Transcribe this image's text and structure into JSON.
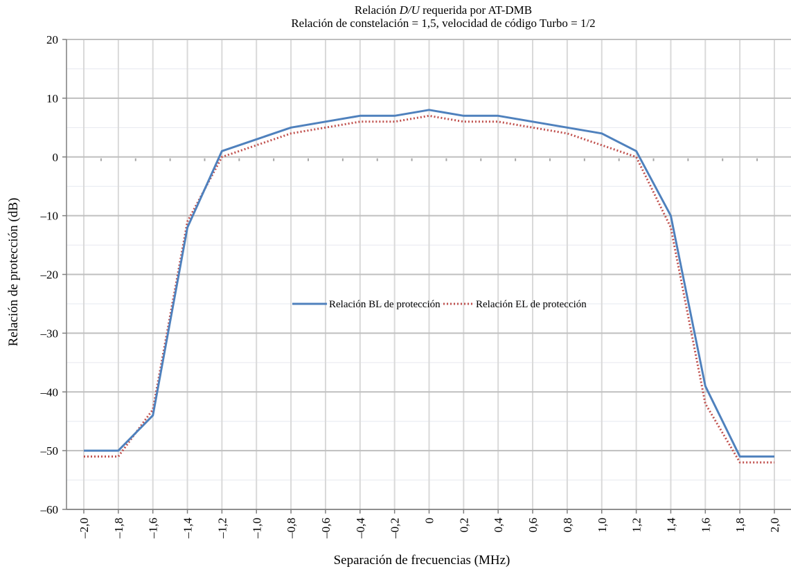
{
  "chart_data": {
    "type": "line",
    "title_parts": [
      "Relación ",
      "D/U",
      " requerida por AT-DMB"
    ],
    "subtitle": "Relación de constelación = 1,5, velocidad de código Turbo = 1/2",
    "xlabel": "Separación de frecuencias (MHz)",
    "ylabel": "Relación de protección (dB)",
    "x": [
      -2.0,
      -1.8,
      -1.6,
      -1.4,
      -1.2,
      -1.0,
      -0.8,
      -0.6,
      -0.4,
      -0.2,
      0,
      0.2,
      0.4,
      0.6,
      0.8,
      1.0,
      1.2,
      1.4,
      1.6,
      1.8,
      2.0
    ],
    "x_tick_labels": [
      "–2,0",
      "–1,8",
      "–1,6",
      "–1,4",
      "–1,2",
      "–1,0",
      "–0,8",
      "–0,6",
      "–0,4",
      "–0,2",
      "0",
      "0,2",
      "0,4",
      "0,6",
      "0,8",
      "1,0",
      "1,2",
      "1,4",
      "1,6",
      "1,8",
      "2,0"
    ],
    "ylim": [
      -60,
      20
    ],
    "y_ticks": [
      20,
      10,
      0,
      -10,
      -20,
      -30,
      -40,
      -50,
      -60
    ],
    "y_tick_labels": [
      "20",
      "10",
      "0",
      "–10",
      "–20",
      "–30",
      "–40",
      "–50",
      "–60"
    ],
    "grid": true,
    "legend_position": "center",
    "series": [
      {
        "name": "Relación BL de protección",
        "color": "#4f81bd",
        "style": "solid",
        "values": [
          -50,
          -50,
          -44,
          -12,
          1,
          3,
          5,
          6,
          7,
          7,
          8,
          7,
          7,
          6,
          5,
          4,
          1,
          -10,
          -39,
          -51,
          -51
        ]
      },
      {
        "name": "Relación EL de protección",
        "color": "#c0504d",
        "style": "dotted",
        "values": [
          -51,
          -51,
          -43,
          -11,
          0,
          2,
          4,
          5,
          6,
          6,
          7,
          6,
          6,
          5,
          4,
          2,
          0,
          -12,
          -42,
          -52,
          -52
        ]
      }
    ]
  }
}
